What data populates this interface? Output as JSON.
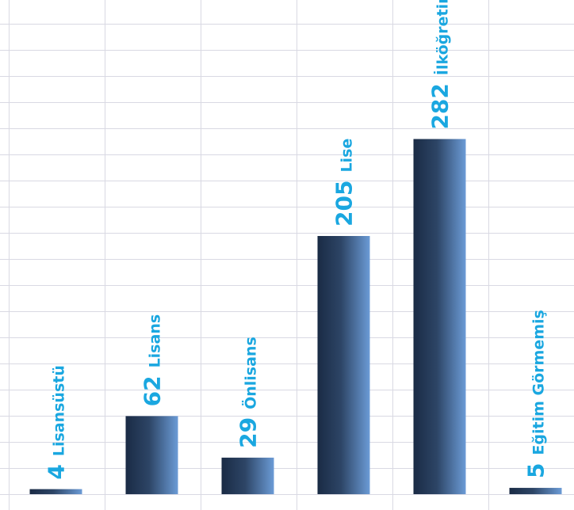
{
  "chart_data": {
    "type": "bar",
    "categories": [
      "Lisansüstü",
      "Lisans",
      "Önlisans",
      "Lise",
      "İlköğretim",
      "Eğitim Görmemiş"
    ],
    "values": [
      4,
      62,
      29,
      205,
      282,
      5
    ],
    "value_labels": [
      "4",
      "62",
      "29",
      "205",
      "282",
      "5"
    ],
    "title": "",
    "xlabel": "",
    "ylabel": "",
    "ylim": [
      0,
      410
    ],
    "grid": true,
    "legend": "none",
    "label_color": "#1aa7e0",
    "bar_gradient": [
      "#1a2b45",
      "#6b9bd6"
    ],
    "grid_color": "#d9d9e3"
  }
}
